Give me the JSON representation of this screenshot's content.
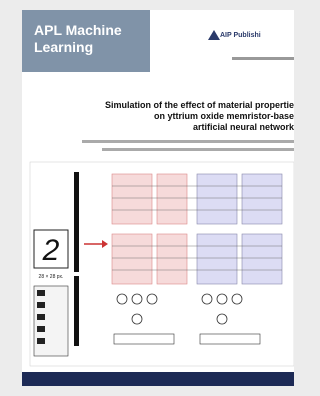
{
  "cover": {
    "journal": "APL Machine Learning",
    "publisher": "AIP Publishi",
    "title_lines": [
      "Simulation of the effect of material propertie",
      "on yttrium oxide memristor-base",
      "artificial neural network"
    ],
    "figure": {
      "digit": "2",
      "size": "28 × 28 px."
    }
  }
}
